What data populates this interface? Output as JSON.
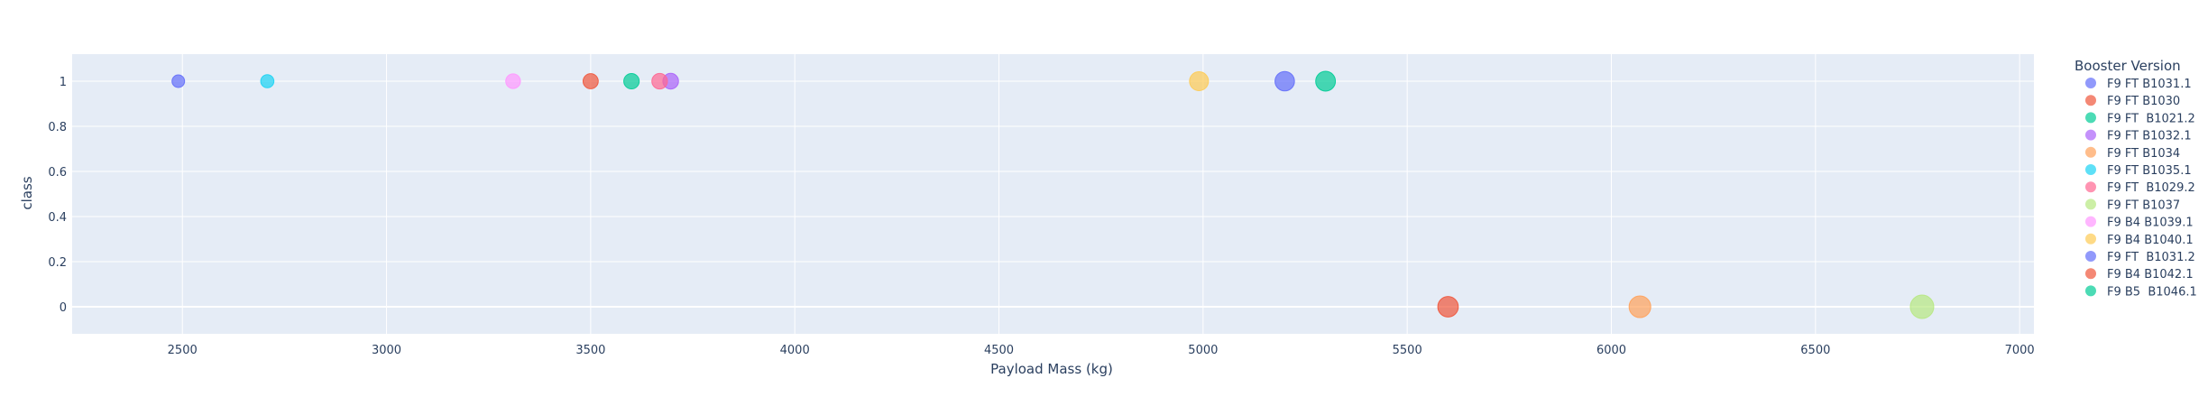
{
  "chart_data": {
    "type": "scatter",
    "xlabel": "Payload Mass (kg)",
    "ylabel": "class",
    "xlim": [
      2230,
      7035
    ],
    "ylim": [
      -0.12,
      1.12
    ],
    "x_ticks": [
      2500,
      3000,
      3500,
      4000,
      4500,
      5000,
      5500,
      6000,
      6500,
      7000
    ],
    "y_ticks": [
      0,
      0.2,
      0.4,
      0.6,
      0.8,
      1
    ],
    "y_tick_labels": [
      "0",
      "0.2",
      "0.4",
      "0.6",
      "0.8",
      "1"
    ],
    "grid": true,
    "plot_background": "#e5ecf6",
    "legend": {
      "title": "Booster Version",
      "placement": "right"
    },
    "series": [
      {
        "name": "F9 FT B1031.1",
        "color": "#636efa",
        "points": [
          {
            "x": 2490,
            "y": 1
          }
        ]
      },
      {
        "name": "F9 FT B1030",
        "color": "#EF553B",
        "points": [
          {
            "x": 5600,
            "y": 0
          }
        ]
      },
      {
        "name": "F9 FT  B1021.2",
        "color": "#00cc96",
        "points": [
          {
            "x": 5300,
            "y": 1
          }
        ]
      },
      {
        "name": "F9 FT B1032.1",
        "color": "#ab63fa",
        "points": [
          {
            "x": 3696,
            "y": 1
          }
        ]
      },
      {
        "name": "F9 FT B1034",
        "color": "#FFA15A",
        "points": [
          {
            "x": 6070,
            "y": 0
          }
        ]
      },
      {
        "name": "F9 FT B1035.1",
        "color": "#19d3f3",
        "points": [
          {
            "x": 2708,
            "y": 1
          }
        ]
      },
      {
        "name": "F9 FT  B1029.2",
        "color": "#FF6692",
        "points": [
          {
            "x": 3669,
            "y": 1
          }
        ]
      },
      {
        "name": "F9 FT B1037",
        "color": "#B6E880",
        "points": [
          {
            "x": 6761,
            "y": 0
          }
        ]
      },
      {
        "name": "F9 B4 B1039.1",
        "color": "#FF97FF",
        "points": [
          {
            "x": 3310,
            "y": 1
          }
        ]
      },
      {
        "name": "F9 B4 B1040.1",
        "color": "#FECB52",
        "points": [
          {
            "x": 4990,
            "y": 1
          }
        ]
      },
      {
        "name": "F9 FT  B1031.2",
        "color": "#636efa",
        "points": [
          {
            "x": 5200,
            "y": 1
          }
        ]
      },
      {
        "name": "F9 B4 B1042.1",
        "color": "#EF553B",
        "points": [
          {
            "x": 3500,
            "y": 1
          }
        ]
      },
      {
        "name": "F9 B5  B1046.1",
        "color": "#00cc96",
        "points": [
          {
            "x": 3600,
            "y": 1
          }
        ]
      }
    ]
  }
}
